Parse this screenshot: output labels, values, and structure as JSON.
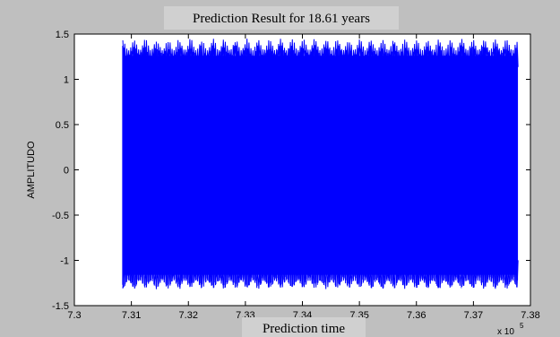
{
  "chart_data": {
    "type": "line",
    "title": "Prediction Result for 18.61 years",
    "xlabel": "Prediction time",
    "ylabel": "AMPLITUDO",
    "x_multiplier": "x 10",
    "x_multiplier_exp": "5",
    "xlim": [
      7.3,
      7.38
    ],
    "ylim": [
      -1.5,
      1.5
    ],
    "xticks": [
      "7.3",
      "7.31",
      "7.32",
      "7.33",
      "7.34",
      "7.35",
      "7.36",
      "7.37",
      "7.38"
    ],
    "yticks": [
      "-1.5",
      "-1",
      "-0.5",
      "0",
      "0.5",
      "1",
      "1.5"
    ],
    "grid": false,
    "series": [
      {
        "color": "#0000ff",
        "x_start": 7.3085,
        "x_end": 7.3777,
        "envelope_max": 1.45,
        "envelope_min": -1.32,
        "typical_peak": 1.32,
        "typical_trough": -1.22
      }
    ]
  }
}
